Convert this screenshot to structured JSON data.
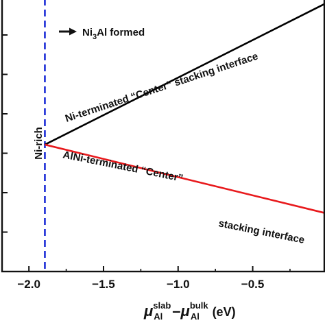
{
  "chart_data": {
    "type": "line",
    "xlim": [
      -2.18,
      -0.02
    ],
    "ylim": [
      0,
      1
    ],
    "x_ticks": [
      -2.0,
      -1.5,
      -1.0,
      -0.5
    ],
    "x_tick_labels": [
      "−2.0",
      "−1.5",
      "−1.0",
      "−0.5"
    ],
    "y_tick_count": 7,
    "xlabel": {
      "mu": "μ",
      "sub": "Al",
      "sup_slab": "slab",
      "dash": "–",
      "sup_bulk": "bulk",
      "unit": "(eV)"
    },
    "series": [
      {
        "color": "#000000",
        "x": [
          -1.893,
          -0.02
        ],
        "y": [
          0.465,
          0.98
        ]
      },
      {
        "color": "#e8191c",
        "x": [
          -1.893,
          -0.02
        ],
        "y": [
          0.465,
          0.215
        ]
      }
    ],
    "vline": {
      "x": -1.893,
      "color": "#1b2bd6",
      "style": "dashed"
    },
    "annotations": {
      "ni3al_pre": "Ni",
      "ni3al_sub": "3",
      "ni3al_post": "Al formed",
      "ni_rich": "Ni-rich",
      "black_line": "Ni-terminated “Center” stacking interface",
      "red_line_1": "AlNi-terminated “Center”",
      "red_line_2": "stacking interface"
    }
  }
}
